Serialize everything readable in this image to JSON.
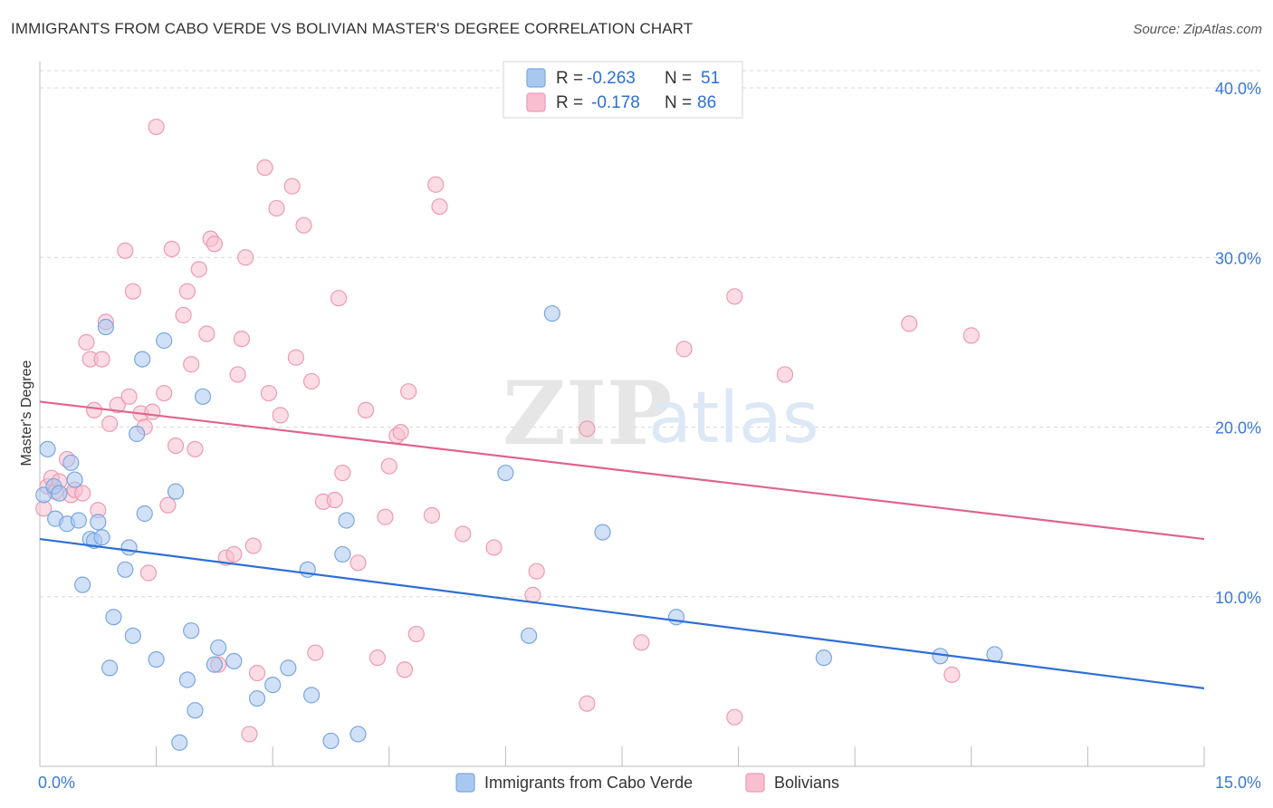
{
  "header": {
    "title": "IMMIGRANTS FROM CABO VERDE VS BOLIVIAN MASTER'S DEGREE CORRELATION CHART",
    "source": "Source: ZipAtlas.com"
  },
  "watermark": {
    "zip": "ZIP",
    "atlas": "atlas"
  },
  "stats_box": {
    "rows": [
      {
        "series": "Immigrants from Cabo Verde",
        "r_label": "R =",
        "r_value": "-0.263",
        "n_label": "N =",
        "n_value": "51"
      },
      {
        "series": "Bolivians",
        "r_label": "R =",
        "r_value": "-0.178",
        "n_label": "N =",
        "n_value": "86"
      }
    ]
  },
  "chart_data": {
    "type": "scatter",
    "title": "IMMIGRANTS FROM CABO VERDE VS BOLIVIAN MASTER'S DEGREE CORRELATION CHART",
    "xlabel": "",
    "ylabel": "Master's Degree",
    "xlim": [
      0,
      15
    ],
    "ylim": [
      0,
      40
    ],
    "x_tick_labels": [
      "0.0%",
      "15.0%"
    ],
    "x_ticks": [
      0,
      1.5,
      3,
      4.5,
      6,
      7.5,
      9,
      10.5,
      12,
      13.5,
      15
    ],
    "y_ticks": [
      10,
      20,
      30,
      40
    ],
    "y_tick_labels": [
      "10.0%",
      "20.0%",
      "30.0%",
      "40.0%"
    ],
    "grid": true,
    "legend_position": "bottom-center",
    "colors": {
      "cabo_fill": "#a9c8f0",
      "cabo_stroke": "#7aa6e0",
      "cabo_line": "#2e6fd6",
      "bol_fill": "#f8bfd0",
      "bol_stroke": "#ee9ab3",
      "bol_line": "#e0648c",
      "tick_text": "#3b78d6",
      "grid": "#d8d8d8"
    },
    "series": [
      {
        "name": "Immigrants from Cabo Verde",
        "color": "#a9c8f0",
        "trend": {
          "x": [
            0,
            15
          ],
          "y": [
            13.4,
            4.6
          ]
        },
        "points": [
          [
            0.05,
            16.0
          ],
          [
            0.1,
            18.7
          ],
          [
            0.18,
            16.5
          ],
          [
            0.2,
            14.6
          ],
          [
            0.25,
            16.1
          ],
          [
            0.35,
            14.3
          ],
          [
            0.4,
            17.9
          ],
          [
            0.45,
            16.9
          ],
          [
            0.5,
            14.5
          ],
          [
            0.55,
            10.7
          ],
          [
            0.65,
            13.4
          ],
          [
            0.7,
            13.3
          ],
          [
            0.75,
            14.4
          ],
          [
            0.8,
            13.5
          ],
          [
            0.85,
            25.9
          ],
          [
            0.9,
            5.8
          ],
          [
            0.95,
            8.8
          ],
          [
            1.1,
            11.6
          ],
          [
            1.15,
            12.9
          ],
          [
            1.2,
            7.7
          ],
          [
            1.25,
            19.6
          ],
          [
            1.32,
            24.0
          ],
          [
            1.35,
            14.9
          ],
          [
            1.5,
            6.3
          ],
          [
            1.6,
            25.1
          ],
          [
            1.75,
            16.2
          ],
          [
            1.8,
            1.4
          ],
          [
            1.9,
            5.1
          ],
          [
            1.95,
            8.0
          ],
          [
            2.0,
            3.3
          ],
          [
            2.1,
            21.8
          ],
          [
            2.25,
            6.0
          ],
          [
            2.3,
            7.0
          ],
          [
            2.5,
            6.2
          ],
          [
            2.8,
            4.0
          ],
          [
            3.0,
            4.8
          ],
          [
            3.2,
            5.8
          ],
          [
            3.45,
            11.6
          ],
          [
            3.5,
            4.2
          ],
          [
            3.75,
            1.5
          ],
          [
            3.9,
            12.5
          ],
          [
            3.95,
            14.5
          ],
          [
            4.1,
            1.9
          ],
          [
            6.0,
            17.3
          ],
          [
            6.3,
            7.7
          ],
          [
            6.6,
            26.7
          ],
          [
            7.25,
            13.8
          ],
          [
            8.2,
            8.8
          ],
          [
            10.1,
            6.4
          ],
          [
            11.6,
            6.5
          ],
          [
            12.3,
            6.6
          ]
        ]
      },
      {
        "name": "Bolivians",
        "color": "#f8bfd0",
        "trend": {
          "x": [
            0,
            15
          ],
          "y": [
            21.5,
            13.4
          ]
        },
        "points": [
          [
            0.05,
            15.2
          ],
          [
            0.1,
            16.5
          ],
          [
            0.15,
            17.0
          ],
          [
            0.2,
            16.2
          ],
          [
            0.25,
            16.8
          ],
          [
            0.35,
            18.1
          ],
          [
            0.4,
            16.0
          ],
          [
            0.45,
            16.3
          ],
          [
            0.55,
            16.1
          ],
          [
            0.6,
            25.0
          ],
          [
            0.65,
            24.0
          ],
          [
            0.7,
            21.0
          ],
          [
            0.75,
            15.1
          ],
          [
            0.8,
            24.0
          ],
          [
            0.85,
            26.2
          ],
          [
            0.9,
            20.2
          ],
          [
            1.0,
            21.3
          ],
          [
            1.1,
            30.4
          ],
          [
            1.15,
            21.8
          ],
          [
            1.2,
            28.0
          ],
          [
            1.3,
            20.8
          ],
          [
            1.35,
            20.0
          ],
          [
            1.4,
            11.4
          ],
          [
            1.45,
            20.9
          ],
          [
            1.5,
            37.7
          ],
          [
            1.6,
            22.0
          ],
          [
            1.65,
            15.4
          ],
          [
            1.7,
            30.5
          ],
          [
            1.75,
            18.9
          ],
          [
            1.85,
            26.6
          ],
          [
            1.9,
            28.0
          ],
          [
            1.95,
            23.7
          ],
          [
            2.0,
            18.7
          ],
          [
            2.05,
            29.3
          ],
          [
            2.15,
            25.5
          ],
          [
            2.2,
            31.1
          ],
          [
            2.25,
            30.8
          ],
          [
            2.3,
            6.0
          ],
          [
            2.4,
            12.3
          ],
          [
            2.5,
            12.5
          ],
          [
            2.55,
            23.1
          ],
          [
            2.6,
            25.2
          ],
          [
            2.65,
            30.0
          ],
          [
            2.7,
            1.9
          ],
          [
            2.75,
            13.0
          ],
          [
            2.8,
            5.5
          ],
          [
            2.9,
            35.3
          ],
          [
            2.95,
            22.0
          ],
          [
            3.05,
            32.9
          ],
          [
            3.1,
            20.7
          ],
          [
            3.25,
            34.2
          ],
          [
            3.3,
            24.1
          ],
          [
            3.4,
            31.9
          ],
          [
            3.5,
            22.7
          ],
          [
            3.55,
            6.7
          ],
          [
            3.65,
            15.6
          ],
          [
            3.8,
            15.7
          ],
          [
            3.85,
            27.6
          ],
          [
            3.9,
            17.3
          ],
          [
            4.1,
            12.0
          ],
          [
            4.2,
            21.0
          ],
          [
            4.35,
            6.4
          ],
          [
            4.45,
            14.7
          ],
          [
            4.5,
            17.7
          ],
          [
            4.6,
            19.5
          ],
          [
            4.65,
            19.7
          ],
          [
            4.7,
            5.7
          ],
          [
            4.75,
            22.1
          ],
          [
            4.85,
            7.8
          ],
          [
            5.05,
            14.8
          ],
          [
            5.1,
            34.3
          ],
          [
            5.15,
            33.0
          ],
          [
            5.45,
            13.7
          ],
          [
            5.85,
            12.9
          ],
          [
            6.35,
            10.1
          ],
          [
            6.4,
            11.5
          ],
          [
            7.05,
            3.7
          ],
          [
            7.05,
            19.9
          ],
          [
            7.75,
            7.3
          ],
          [
            8.3,
            24.6
          ],
          [
            8.95,
            27.7
          ],
          [
            8.95,
            2.9
          ],
          [
            9.6,
            23.1
          ],
          [
            11.2,
            26.1
          ],
          [
            11.75,
            5.4
          ],
          [
            12.0,
            25.4
          ]
        ]
      }
    ]
  }
}
